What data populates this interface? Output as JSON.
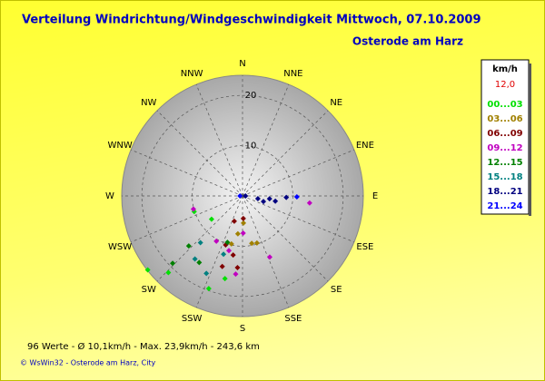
{
  "chart_data": {
    "type": "polar-scatter",
    "title": "Verteilung Windrichtung/Windgeschwindigkeit  Mittwoch, 07.10.2009",
    "subtitle": "Osterode am Harz",
    "legend_title": "km/h",
    "current_speed": "12,0",
    "footer": "96 Werte   -   Ø 10,1km/h  -  Max. 23,9km/h   -   243,6 km",
    "copyright": "© WsWin32  -  Osterode am Harz, City",
    "directions": [
      "N",
      "NNE",
      "NE",
      "ENE",
      "E",
      "ESE",
      "SE",
      "SSE",
      "S",
      "SSW",
      "SW",
      "WSW",
      "W",
      "WNW",
      "NW",
      "NNW"
    ],
    "rlim": [
      0,
      24
    ],
    "rticks": [
      10,
      20
    ],
    "grid": true,
    "series": [
      {
        "name": "00...03",
        "color": "#00e000",
        "x": [
          232,
          233,
          252,
          224,
          200,
          192
        ],
        "values": [
          23.9,
          7.7,
          10.1,
          21.2,
          19.6,
          16.8
        ]
      },
      {
        "name": "03...06",
        "color": "#a08000",
        "x": [
          187,
          169,
          163,
          178,
          193
        ],
        "values": [
          7.6,
          9.6,
          9.8,
          5.4,
          9.8
        ]
      },
      {
        "name": "06...09",
        "color": "#800000",
        "x": [
          198,
          178,
          199,
          184,
          196,
          189
        ],
        "values": [
          5.3,
          4.5,
          10.3,
          14.3,
          14.6,
          11.9
        ]
      },
      {
        "name": "09...12",
        "color": "#c000c0",
        "x": [
          194,
          185,
          210,
          96,
          156,
          179,
          255
        ],
        "values": [
          11.2,
          15.6,
          10.4,
          13.4,
          13.3,
          7.4,
          10.1
        ]
      },
      {
        "name": "12...15",
        "color": "#008000",
        "x": [
          226,
          227,
          213,
          198
        ],
        "values": [
          19.3,
          14.6,
          15.8,
          9.7
        ]
      },
      {
        "name": "15...18",
        "color": "#008080",
        "x": [
          217,
          198,
          222,
          205
        ],
        "values": [
          15.7,
          12.2,
          12.5,
          17.0
        ]
      },
      {
        "name": "18...21",
        "color": "#000080",
        "x": [
          100,
          105,
          96,
          99,
          92,
          90
        ],
        "values": [
          3.1,
          4.3,
          5.4,
          6.6,
          8.7,
          0.6
        ]
      },
      {
        "name": "21...24",
        "color": "#0000ff",
        "x": [
          270,
          91
        ],
        "values": [
          0.5,
          10.8
        ]
      }
    ]
  }
}
